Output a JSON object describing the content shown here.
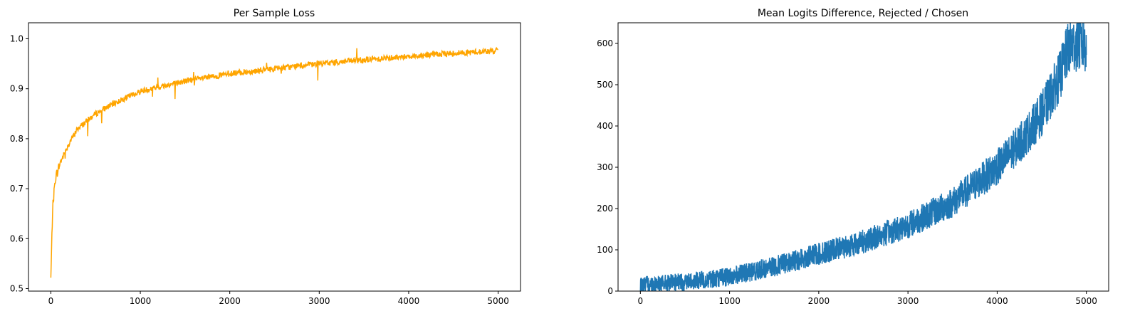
{
  "chart_data": [
    {
      "type": "line",
      "title": "Per Sample Loss",
      "xlabel": "",
      "ylabel": "",
      "xlim": [
        -250,
        5250
      ],
      "ylim": [
        0.495,
        1.032
      ],
      "xticks": [
        0,
        1000,
        2000,
        3000,
        4000,
        5000
      ],
      "yticks": [
        0.5,
        0.6,
        0.7,
        0.8,
        0.9,
        1.0
      ],
      "ytick_labels": [
        "0.5",
        "0.6",
        "0.7",
        "0.8",
        "0.9",
        "1.0"
      ],
      "grid": false,
      "color": "#ffa500",
      "x": [
        0,
        20,
        50,
        100,
        200,
        300,
        500,
        700,
        1000,
        1500,
        2000,
        2500,
        3000,
        3500,
        4000,
        4500,
        5000
      ],
      "y": [
        0.52,
        0.66,
        0.72,
        0.75,
        0.79,
        0.82,
        0.85,
        0.87,
        0.895,
        0.915,
        0.93,
        0.94,
        0.95,
        0.958,
        0.965,
        0.971,
        0.976
      ]
    },
    {
      "type": "line",
      "title": "Mean Logits Difference, Rejected / Chosen",
      "xlabel": "",
      "ylabel": "",
      "xlim": [
        -250,
        5250
      ],
      "ylim": [
        0,
        650
      ],
      "xticks": [
        0,
        1000,
        2000,
        3000,
        4000,
        5000
      ],
      "yticks": [
        0,
        100,
        200,
        300,
        400,
        500,
        600
      ],
      "ytick_labels": [
        "0",
        "100",
        "200",
        "300",
        "400",
        "500",
        "600"
      ],
      "grid": false,
      "color": "#1f77b4",
      "x": [
        0,
        500,
        1000,
        1500,
        2000,
        2500,
        3000,
        3500,
        4000,
        4300,
        4500,
        4700,
        4800,
        4900,
        5000
      ],
      "y": [
        15,
        22,
        35,
        60,
        90,
        120,
        160,
        215,
        300,
        370,
        430,
        520,
        590,
        600,
        595
      ]
    }
  ]
}
